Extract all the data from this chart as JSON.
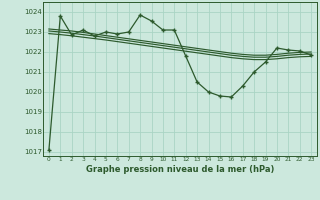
{
  "title": "Graphe pression niveau de la mer (hPa)",
  "bg_color": "#cce8dd",
  "grid_color": "#aad4c4",
  "line_color": "#2d5a2d",
  "xlim": [
    -0.5,
    23.5
  ],
  "ylim": [
    1016.8,
    1024.5
  ],
  "yticks": [
    1017,
    1018,
    1019,
    1020,
    1021,
    1022,
    1023,
    1024
  ],
  "xticks": [
    0,
    1,
    2,
    3,
    4,
    5,
    6,
    7,
    8,
    9,
    10,
    11,
    12,
    13,
    14,
    15,
    16,
    17,
    18,
    19,
    20,
    21,
    22,
    23
  ],
  "main_series": [
    1017.1,
    1023.8,
    1022.85,
    1023.1,
    1022.8,
    1023.0,
    1022.9,
    1023.0,
    1023.85,
    1023.55,
    1023.1,
    1023.1,
    1021.8,
    1020.5,
    1020.0,
    1019.8,
    1019.75,
    1020.3,
    1021.0,
    1021.5,
    1022.2,
    1022.1,
    1022.05,
    1021.85
  ],
  "smooth1": [
    1023.15,
    1023.1,
    1023.05,
    1022.98,
    1022.9,
    1022.82,
    1022.74,
    1022.66,
    1022.58,
    1022.5,
    1022.42,
    1022.34,
    1022.26,
    1022.18,
    1022.1,
    1022.02,
    1021.94,
    1021.88,
    1021.84,
    1021.84,
    1021.88,
    1021.94,
    1021.98,
    1022.0
  ],
  "smooth2": [
    1023.05,
    1023.0,
    1022.94,
    1022.87,
    1022.8,
    1022.72,
    1022.64,
    1022.56,
    1022.48,
    1022.4,
    1022.32,
    1022.24,
    1022.16,
    1022.08,
    1022.0,
    1021.92,
    1021.84,
    1021.78,
    1021.74,
    1021.74,
    1021.78,
    1021.84,
    1021.88,
    1021.9
  ],
  "smooth3": [
    1022.92,
    1022.87,
    1022.81,
    1022.74,
    1022.67,
    1022.6,
    1022.52,
    1022.44,
    1022.36,
    1022.28,
    1022.2,
    1022.12,
    1022.04,
    1021.96,
    1021.88,
    1021.8,
    1021.72,
    1021.66,
    1021.62,
    1021.62,
    1021.66,
    1021.72,
    1021.76,
    1021.78
  ]
}
